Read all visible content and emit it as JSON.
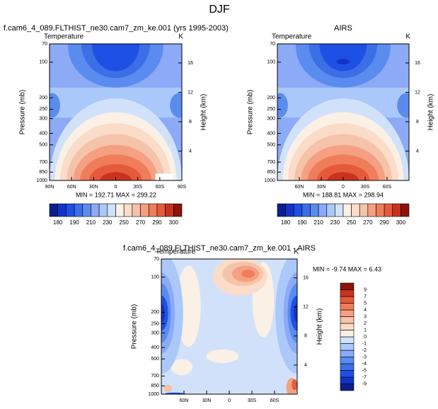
{
  "page_title": "DJF",
  "chart_data": [
    {
      "type": "contour",
      "title": "f.cam6_4_089.FLTHIST_ne30.cam7_zm_ke.001 (yrs 1995-2003)",
      "left_string": "Temperature",
      "right_string": "K",
      "stats": "MIN = 192.71   MAX = 299.22",
      "ylabel": "Pressure (mb)",
      "y2label": "Height (km)",
      "log_y": true,
      "ylim": [
        70,
        1000
      ],
      "yticks": [
        70,
        100,
        200,
        250,
        300,
        400,
        500,
        700,
        850,
        1000
      ],
      "y2lim": [
        0,
        18.6
      ],
      "y2ticks": [
        4,
        8,
        12,
        16
      ],
      "xlim": [
        90,
        -90
      ],
      "xticks": [
        {
          "value": 90,
          "label": "90N"
        },
        {
          "value": 60,
          "label": "60N"
        },
        {
          "value": 30,
          "label": "30N"
        },
        0,
        {
          "value": -30,
          "label": "30S"
        },
        {
          "value": -60,
          "label": "60S"
        },
        {
          "value": -90,
          "label": "90S"
        }
      ],
      "field": "temperature",
      "colorbar": {
        "orientation": "horizontal",
        "colors": [
          "#0a1e8c",
          "#1432c8",
          "#1e50e6",
          "#3c6ee6",
          "#5a8cf0",
          "#8caaf5",
          "#aac8fa",
          "#d2e1fa",
          "#faf0e6",
          "#fadcc8",
          "#f5c3aa",
          "#f5a082",
          "#f07d5a",
          "#e65a3c",
          "#c8321e",
          "#8c140a"
        ],
        "ticks": [
          180,
          190,
          210,
          230,
          250,
          270,
          290,
          300
        ]
      }
    },
    {
      "type": "contour",
      "title": "AIRS",
      "left_string": "Temperature",
      "right_string": "K",
      "stats": "MIN = 188.81   MAX = 298.94",
      "ylabel": "Pressure (mb)",
      "y2label": "Height (km)",
      "log_y": true,
      "ylim": [
        70,
        1000
      ],
      "yticks": [
        70,
        100,
        200,
        250,
        300,
        400,
        500,
        700,
        850,
        1000
      ],
      "y2lim": [
        0,
        18.6
      ],
      "y2ticks": [
        4,
        8,
        12,
        16
      ],
      "xlim": [
        90,
        -90
      ],
      "xticks": [
        {
          "value": 60,
          "label": "60N"
        },
        {
          "value": 30,
          "label": "30N"
        },
        0,
        {
          "value": -30,
          "label": "30S"
        },
        {
          "value": -60,
          "label": "60S"
        }
      ],
      "field": "temperature",
      "colorbar": {
        "orientation": "horizontal",
        "colors": [
          "#0a1e8c",
          "#1432c8",
          "#1e50e6",
          "#3c6ee6",
          "#5a8cf0",
          "#8caaf5",
          "#aac8fa",
          "#d2e1fa",
          "#faf0e6",
          "#fadcc8",
          "#f5c3aa",
          "#f5a082",
          "#f07d5a",
          "#e65a3c",
          "#c8321e",
          "#8c140a"
        ],
        "ticks": [
          180,
          190,
          210,
          230,
          250,
          270,
          290,
          300
        ]
      }
    },
    {
      "type": "contour",
      "title": "f.cam6_4_089.FLTHIST_ne30.cam7_zm_ke.001 - AIRS",
      "left_string": "Temperature",
      "right_string": "K",
      "stats": "MIN =  -9.74   MAX =   6.43",
      "ylabel": "Pressure (mb)",
      "y2label": "Height (km)",
      "log_y": true,
      "ylim": [
        70,
        1000
      ],
      "yticks": [
        70,
        100,
        200,
        250,
        300,
        400,
        500,
        700,
        850,
        1000
      ],
      "y2lim": [
        0,
        18.6
      ],
      "y2ticks": [
        4,
        8,
        12,
        16
      ],
      "xlim": [
        90,
        -90
      ],
      "xticks": [
        {
          "value": 60,
          "label": "60N"
        },
        {
          "value": 30,
          "label": "30N"
        },
        0,
        {
          "value": -30,
          "label": "30S"
        },
        {
          "value": -60,
          "label": "60S"
        }
      ],
      "field": "difference",
      "colorbar": {
        "orientation": "vertical",
        "colors": [
          "#0a1e8c",
          "#1432c8",
          "#1e50e6",
          "#3c6ee6",
          "#5a8cf0",
          "#8caaf5",
          "#aac8fa",
          "#d2e1fa",
          "#faf0e6",
          "#fadcc8",
          "#f5c3aa",
          "#f5a082",
          "#f07d5a",
          "#e65a3c",
          "#c8321e",
          "#8c140a"
        ],
        "ticks": [
          -9,
          -7,
          -5,
          -4,
          -3,
          -2,
          -1,
          0,
          1,
          2,
          3,
          4,
          5,
          7,
          9
        ]
      }
    }
  ]
}
